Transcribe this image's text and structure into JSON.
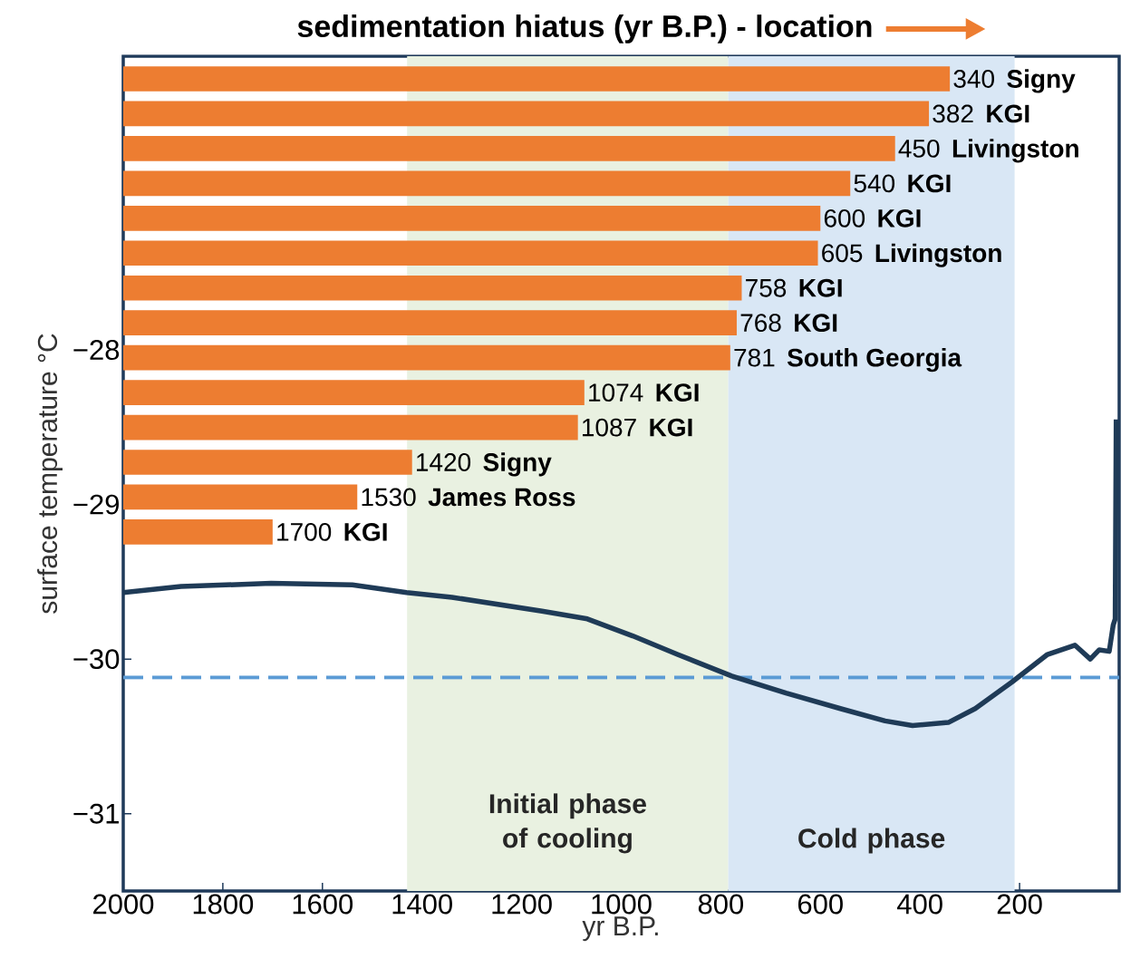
{
  "chart_data": [
    {
      "type": "bar",
      "orientation": "horizontal",
      "title": "sedimentation hiatus (yr B.P.) - location",
      "color": "#ed7d31",
      "categories": [
        "Signy",
        "KGI",
        "Livingston",
        "KGI",
        "KGI",
        "Livingston",
        "KGI",
        "KGI",
        "South Georgia",
        "KGI",
        "KGI",
        "Signy",
        "James Ross",
        "KGI"
      ],
      "base": [
        340,
        382,
        450,
        540,
        600,
        605,
        758,
        768,
        781,
        1074,
        1087,
        1420,
        1530,
        1700
      ],
      "values": [
        1660,
        1618,
        1550,
        1460,
        1400,
        1395,
        1242,
        1232,
        1219,
        926,
        913,
        580,
        470,
        300
      ],
      "annotations": [
        {
          "text": "340",
          "x": 340
        },
        {
          "text": "382",
          "x": 382
        },
        {
          "text": "450",
          "x": 450
        },
        {
          "text": "540",
          "x": 540
        },
        {
          "text": "600",
          "x": 600
        },
        {
          "text": "605",
          "x": 605
        },
        {
          "text": "758",
          "x": 758
        },
        {
          "text": "768",
          "x": 768
        },
        {
          "text": "781",
          "x": 781
        },
        {
          "text": "1074",
          "x": 1074
        },
        {
          "text": "1087",
          "x": 1087
        },
        {
          "text": "1420",
          "x": 1420
        },
        {
          "text": "1530",
          "x": 1530
        },
        {
          "text": "1700",
          "x": 1700
        }
      ],
      "xlim": [
        2000,
        0
      ],
      "tick_labels": false
    },
    {
      "type": "line",
      "color": "#1f3b57",
      "xlabel": "yr B.P.",
      "ylabel": "surface temperature °C",
      "x": [
        2000,
        1884,
        1703,
        1540,
        1431,
        1340,
        1159,
        1068,
        977,
        887,
        778,
        669,
        560,
        470,
        415,
        343,
        289,
        216,
        144,
        89,
        58,
        40,
        20,
        12,
        8,
        6
      ],
      "values": [
        -29.57,
        -29.53,
        -29.51,
        -29.52,
        -29.57,
        -29.6,
        -29.69,
        -29.74,
        -29.85,
        -29.97,
        -30.11,
        -30.22,
        -30.32,
        -30.4,
        -30.43,
        -30.41,
        -30.32,
        -30.15,
        -29.97,
        -29.91,
        -30.0,
        -29.94,
        -29.95,
        -29.78,
        -29.74,
        -28.45
      ],
      "xlim": [
        2000,
        0
      ],
      "ylim": [
        -31.5,
        -26.1
      ],
      "xticks": [
        2000,
        1800,
        1600,
        1400,
        1200,
        1000,
        800,
        600,
        400,
        200
      ],
      "yticks": [
        {
          "value": -31,
          "label": "−31"
        },
        {
          "value": -30,
          "label": "−30"
        },
        {
          "value": -29,
          "label": "−29"
        },
        {
          "value": -28,
          "label": "−28"
        }
      ],
      "bands": [
        {
          "axis": "x",
          "from": 1430,
          "to": 785,
          "label": "Initial phase of cooling",
          "color": "#e9f1e1"
        },
        {
          "axis": "x",
          "from": 785,
          "to": 210,
          "label": "Cold phase",
          "color": "#d9e7f5"
        }
      ],
      "ref_lines": [
        {
          "axis": "y",
          "value": -30.12,
          "color": "#5b9bd5",
          "line_style": "dashed"
        }
      ]
    }
  ]
}
